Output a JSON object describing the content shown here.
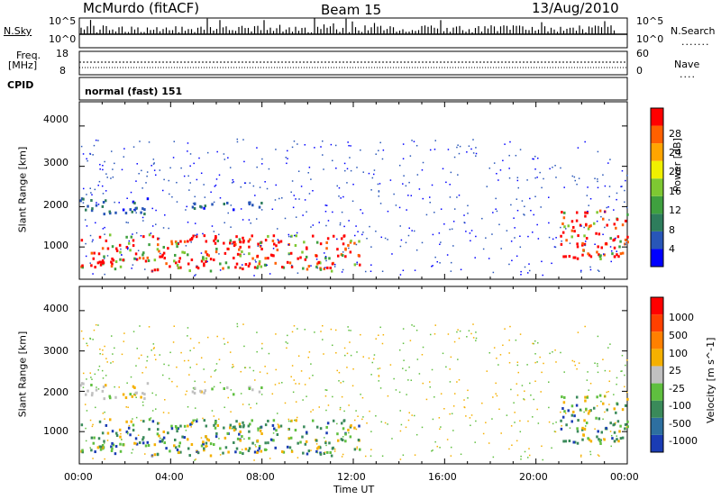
{
  "header": {
    "title": "McMurdo (fitACF)",
    "beam": "Beam 15",
    "date": "13/Aug/2010"
  },
  "noise_panel": {
    "left_label": "N.Sky",
    "right_label": "N.Search",
    "left_ticks": [
      "10^5",
      "10^0"
    ],
    "right_ticks": [
      "10^5",
      "10^0"
    ]
  },
  "freq_panel": {
    "left_label": "Freq.",
    "left_unit": "[MHz]",
    "right_label": "Nave",
    "left_ticks": [
      "18",
      "8"
    ],
    "right_ticks": [
      "60",
      "0"
    ]
  },
  "cpid": {
    "label": "CPID",
    "value": "normal (fast) 151"
  },
  "power_panel": {
    "ylabel": "Slant Range [km]",
    "yticks": [
      "4000",
      "3000",
      "2000",
      "1000"
    ],
    "colorbar_label": "Power [dB]",
    "colorbar_ticks": [
      "28",
      "24",
      "20",
      "16",
      "12",
      "8",
      "4"
    ],
    "colors": [
      "#0000ff",
      "#2856b8",
      "#2e7d5c",
      "#3fa03f",
      "#7ec832",
      "#f0f000",
      "#ffa500",
      "#ff6000",
      "#ff0000"
    ]
  },
  "velocity_panel": {
    "ylabel": "Slant Range [km]",
    "yticks": [
      "4000",
      "3000",
      "2000",
      "1000"
    ],
    "colorbar_label": "Velocity [m s^-1]",
    "colorbar_ticks": [
      "1000",
      "500",
      "100",
      "25",
      "-25",
      "-100",
      "-500",
      "-1000"
    ],
    "colors": [
      "#1a3cb4",
      "#2d6fa0",
      "#3a8a5a",
      "#5fbf3f",
      "#c0c0c0",
      "#f5b000",
      "#ff8000",
      "#ff4000",
      "#ff0000"
    ]
  },
  "time_axis": {
    "label": "Time UT",
    "ticks": [
      "00:00",
      "04:00",
      "08:00",
      "12:00",
      "16:00",
      "20:00",
      "00:00"
    ]
  },
  "chart_data": {
    "type": "heatmap",
    "x_unit": "hours UT",
    "xlim": [
      0,
      24
    ],
    "ylim": [
      200,
      4600
    ],
    "power_scatter_bands": [
      {
        "t0": 0.0,
        "t1": 12.3,
        "r0": 400,
        "r1": 1300,
        "level": "high"
      },
      {
        "t0": 0.0,
        "t1": 3.0,
        "r0": 1800,
        "r1": 2200,
        "level": "low"
      },
      {
        "t0": 4.8,
        "t1": 8.3,
        "r0": 1900,
        "r1": 2100,
        "level": "low"
      },
      {
        "t0": 21.0,
        "t1": 24.0,
        "r0": 700,
        "r1": 1900,
        "level": "high"
      }
    ]
  }
}
